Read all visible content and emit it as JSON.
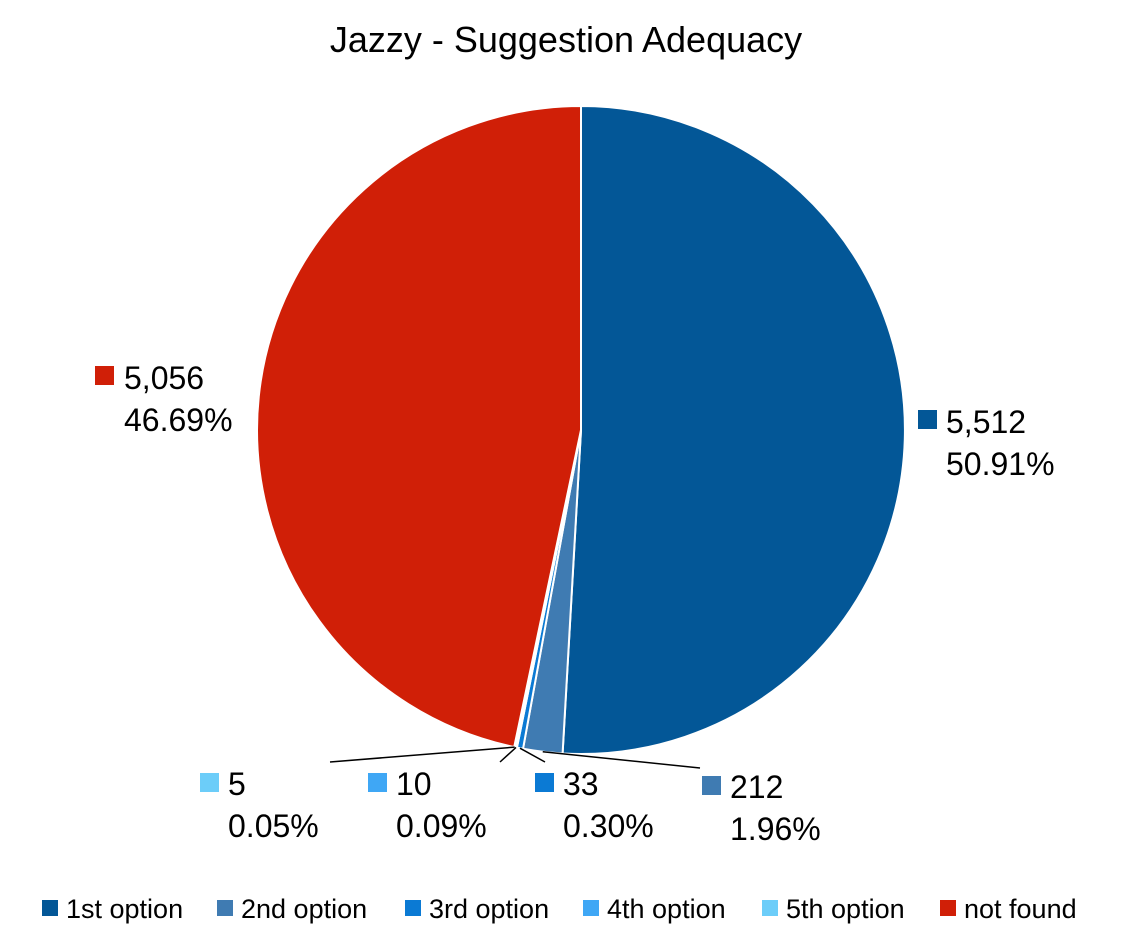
{
  "chart_data": {
    "type": "pie",
    "title": "Jazzy - Suggestion Adequacy",
    "slices": [
      {
        "name": "1st option",
        "value": 5512,
        "value_label": "5,512",
        "percent_label": "50.91%",
        "color": "#035797"
      },
      {
        "name": "2nd option",
        "value": 212,
        "value_label": "212",
        "percent_label": "1.96%",
        "color": "#3f7bb2"
      },
      {
        "name": "3rd option",
        "value": 33,
        "value_label": "33",
        "percent_label": "0.30%",
        "color": "#0b7ad4"
      },
      {
        "name": "4th option",
        "value": 10,
        "value_label": "10",
        "percent_label": "0.09%",
        "color": "#3fa7f5"
      },
      {
        "name": "5th option",
        "value": 5,
        "value_label": "5",
        "percent_label": "0.05%",
        "color": "#6ccdf9"
      },
      {
        "name": "not found",
        "value": 5056,
        "value_label": "5,056",
        "percent_label": "46.69%",
        "color": "#d01f07"
      }
    ],
    "legend_position": "bottom",
    "start_angle": "top, clockwise"
  }
}
